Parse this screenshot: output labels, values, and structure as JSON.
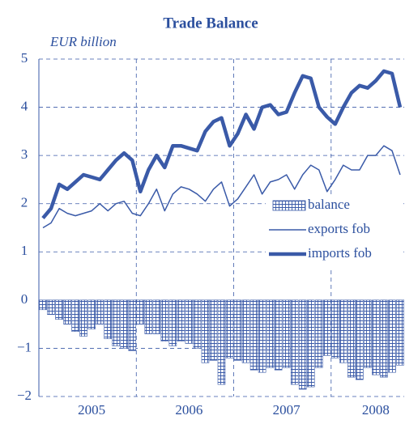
{
  "chart_data": {
    "type": "line",
    "title": "Trade Balance",
    "y_label": "EUR billion",
    "categories": [
      null,
      null,
      null,
      null,
      null,
      null,
      "2005",
      null,
      null,
      null,
      null,
      null,
      null,
      null,
      null,
      null,
      null,
      null,
      "2006",
      null,
      null,
      null,
      null,
      null,
      null,
      null,
      null,
      null,
      null,
      null,
      "2007",
      null,
      null,
      null,
      null,
      null,
      null,
      null,
      null,
      null,
      null,
      "2008",
      null,
      null,
      null
    ],
    "series": [
      {
        "name": "balance",
        "type": "bar",
        "color": "#3a5aa8",
        "values": [
          -0.2,
          -0.3,
          -0.4,
          -0.5,
          -0.65,
          -0.75,
          -0.6,
          -0.5,
          -0.8,
          -0.95,
          -1.0,
          -1.05,
          -0.5,
          -0.7,
          -0.7,
          -0.85,
          -0.95,
          -0.85,
          -0.9,
          -1.0,
          -1.3,
          -1.25,
          -1.75,
          -1.2,
          -1.25,
          -1.3,
          -1.45,
          -1.5,
          -1.4,
          -1.45,
          -1.4,
          -1.75,
          -1.85,
          -1.8,
          -1.4,
          -1.15,
          -1.2,
          -1.3,
          -1.6,
          -1.65,
          -1.4,
          -1.55,
          -1.6,
          -1.5,
          -1.35
        ]
      },
      {
        "name": "exports fob",
        "type": "line",
        "color": "#3a5aa8",
        "width": 1.5,
        "values": [
          1.5,
          1.6,
          1.9,
          1.8,
          1.75,
          1.8,
          1.85,
          2.0,
          1.85,
          2.0,
          2.05,
          1.8,
          1.75,
          2.0,
          2.3,
          1.85,
          2.2,
          2.35,
          2.3,
          2.2,
          2.05,
          2.3,
          2.45,
          1.95,
          2.1,
          2.35,
          2.6,
          2.2,
          2.45,
          2.5,
          2.6,
          2.3,
          2.6,
          2.8,
          2.7,
          2.25,
          2.5,
          2.8,
          2.7,
          2.7,
          3.0,
          3.0,
          3.2,
          3.1,
          2.6
        ]
      },
      {
        "name": "imports fob",
        "type": "line",
        "color": "#3a5aa8",
        "width": 4.5,
        "values": [
          1.7,
          1.9,
          2.4,
          2.3,
          2.45,
          2.6,
          2.55,
          2.5,
          2.7,
          2.9,
          3.05,
          2.9,
          2.25,
          2.7,
          3.0,
          2.75,
          3.2,
          3.2,
          3.15,
          3.1,
          3.5,
          3.7,
          3.78,
          3.2,
          3.45,
          3.85,
          3.55,
          4.0,
          4.05,
          3.85,
          3.9,
          4.3,
          4.65,
          4.6,
          4.0,
          3.8,
          3.65,
          4.0,
          4.3,
          4.45,
          4.4,
          4.55,
          4.75,
          4.7,
          4.0
        ]
      }
    ],
    "ylim": [
      -2,
      5
    ],
    "yticks": [
      {
        "value": -2,
        "label": "−2"
      },
      {
        "value": -1,
        "label": "−1"
      },
      0,
      1,
      2,
      3,
      4,
      5
    ],
    "grid": true
  }
}
